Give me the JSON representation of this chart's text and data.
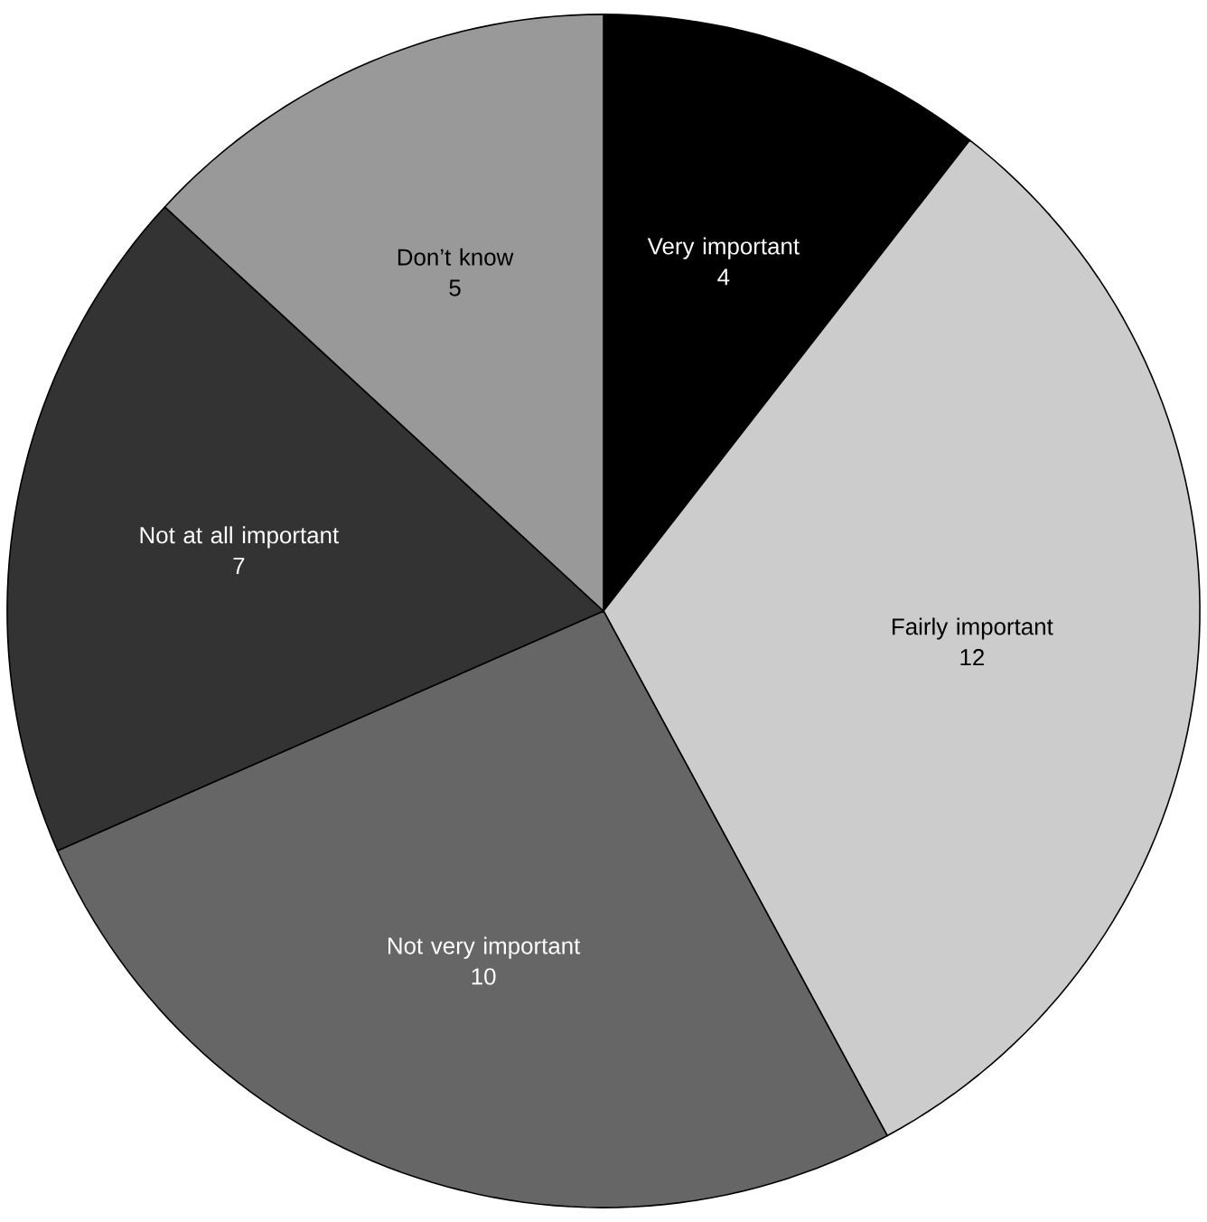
{
  "chart_data": {
    "type": "pie",
    "categories": [
      "Very important",
      "Fairly important",
      "Not very important",
      "Not at all important",
      "Don’t know"
    ],
    "values": [
      4,
      12,
      10,
      7,
      5
    ],
    "colors": [
      "#000000",
      "#cccccc",
      "#666666",
      "#333333",
      "#999999"
    ],
    "data_labels": true
  }
}
